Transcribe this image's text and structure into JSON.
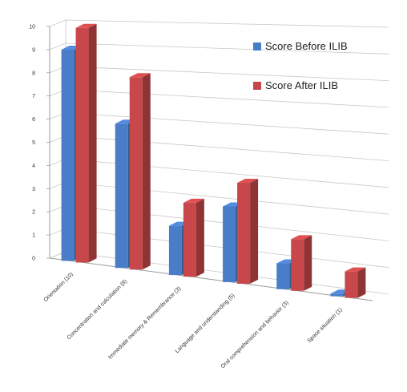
{
  "chart_data": {
    "type": "bar",
    "categories": [
      "Orientation (10)",
      "Concentration and calculation (8)",
      "Immediate memory & Remembrance (3)",
      "Language and understanding (5)",
      "Oral comprehension and behavior (3)",
      "Space situation  (1)"
    ],
    "series": [
      {
        "name": "Score  Before ILIB",
        "values": [
          9,
          6,
          2,
          3,
          1,
          0.1
        ],
        "color": "#4a7dc7"
      },
      {
        "name": "Score  After ILIB",
        "values": [
          10,
          8,
          3,
          4,
          2,
          1
        ],
        "color": "#c8474a"
      }
    ],
    "ylim": [
      0,
      10
    ],
    "yticks": [
      "0",
      "1",
      "2",
      "3",
      "4",
      "5",
      "6",
      "7",
      "8",
      "9",
      "10"
    ],
    "grid": true,
    "legend": "top-right",
    "view": "3d-perspective"
  }
}
